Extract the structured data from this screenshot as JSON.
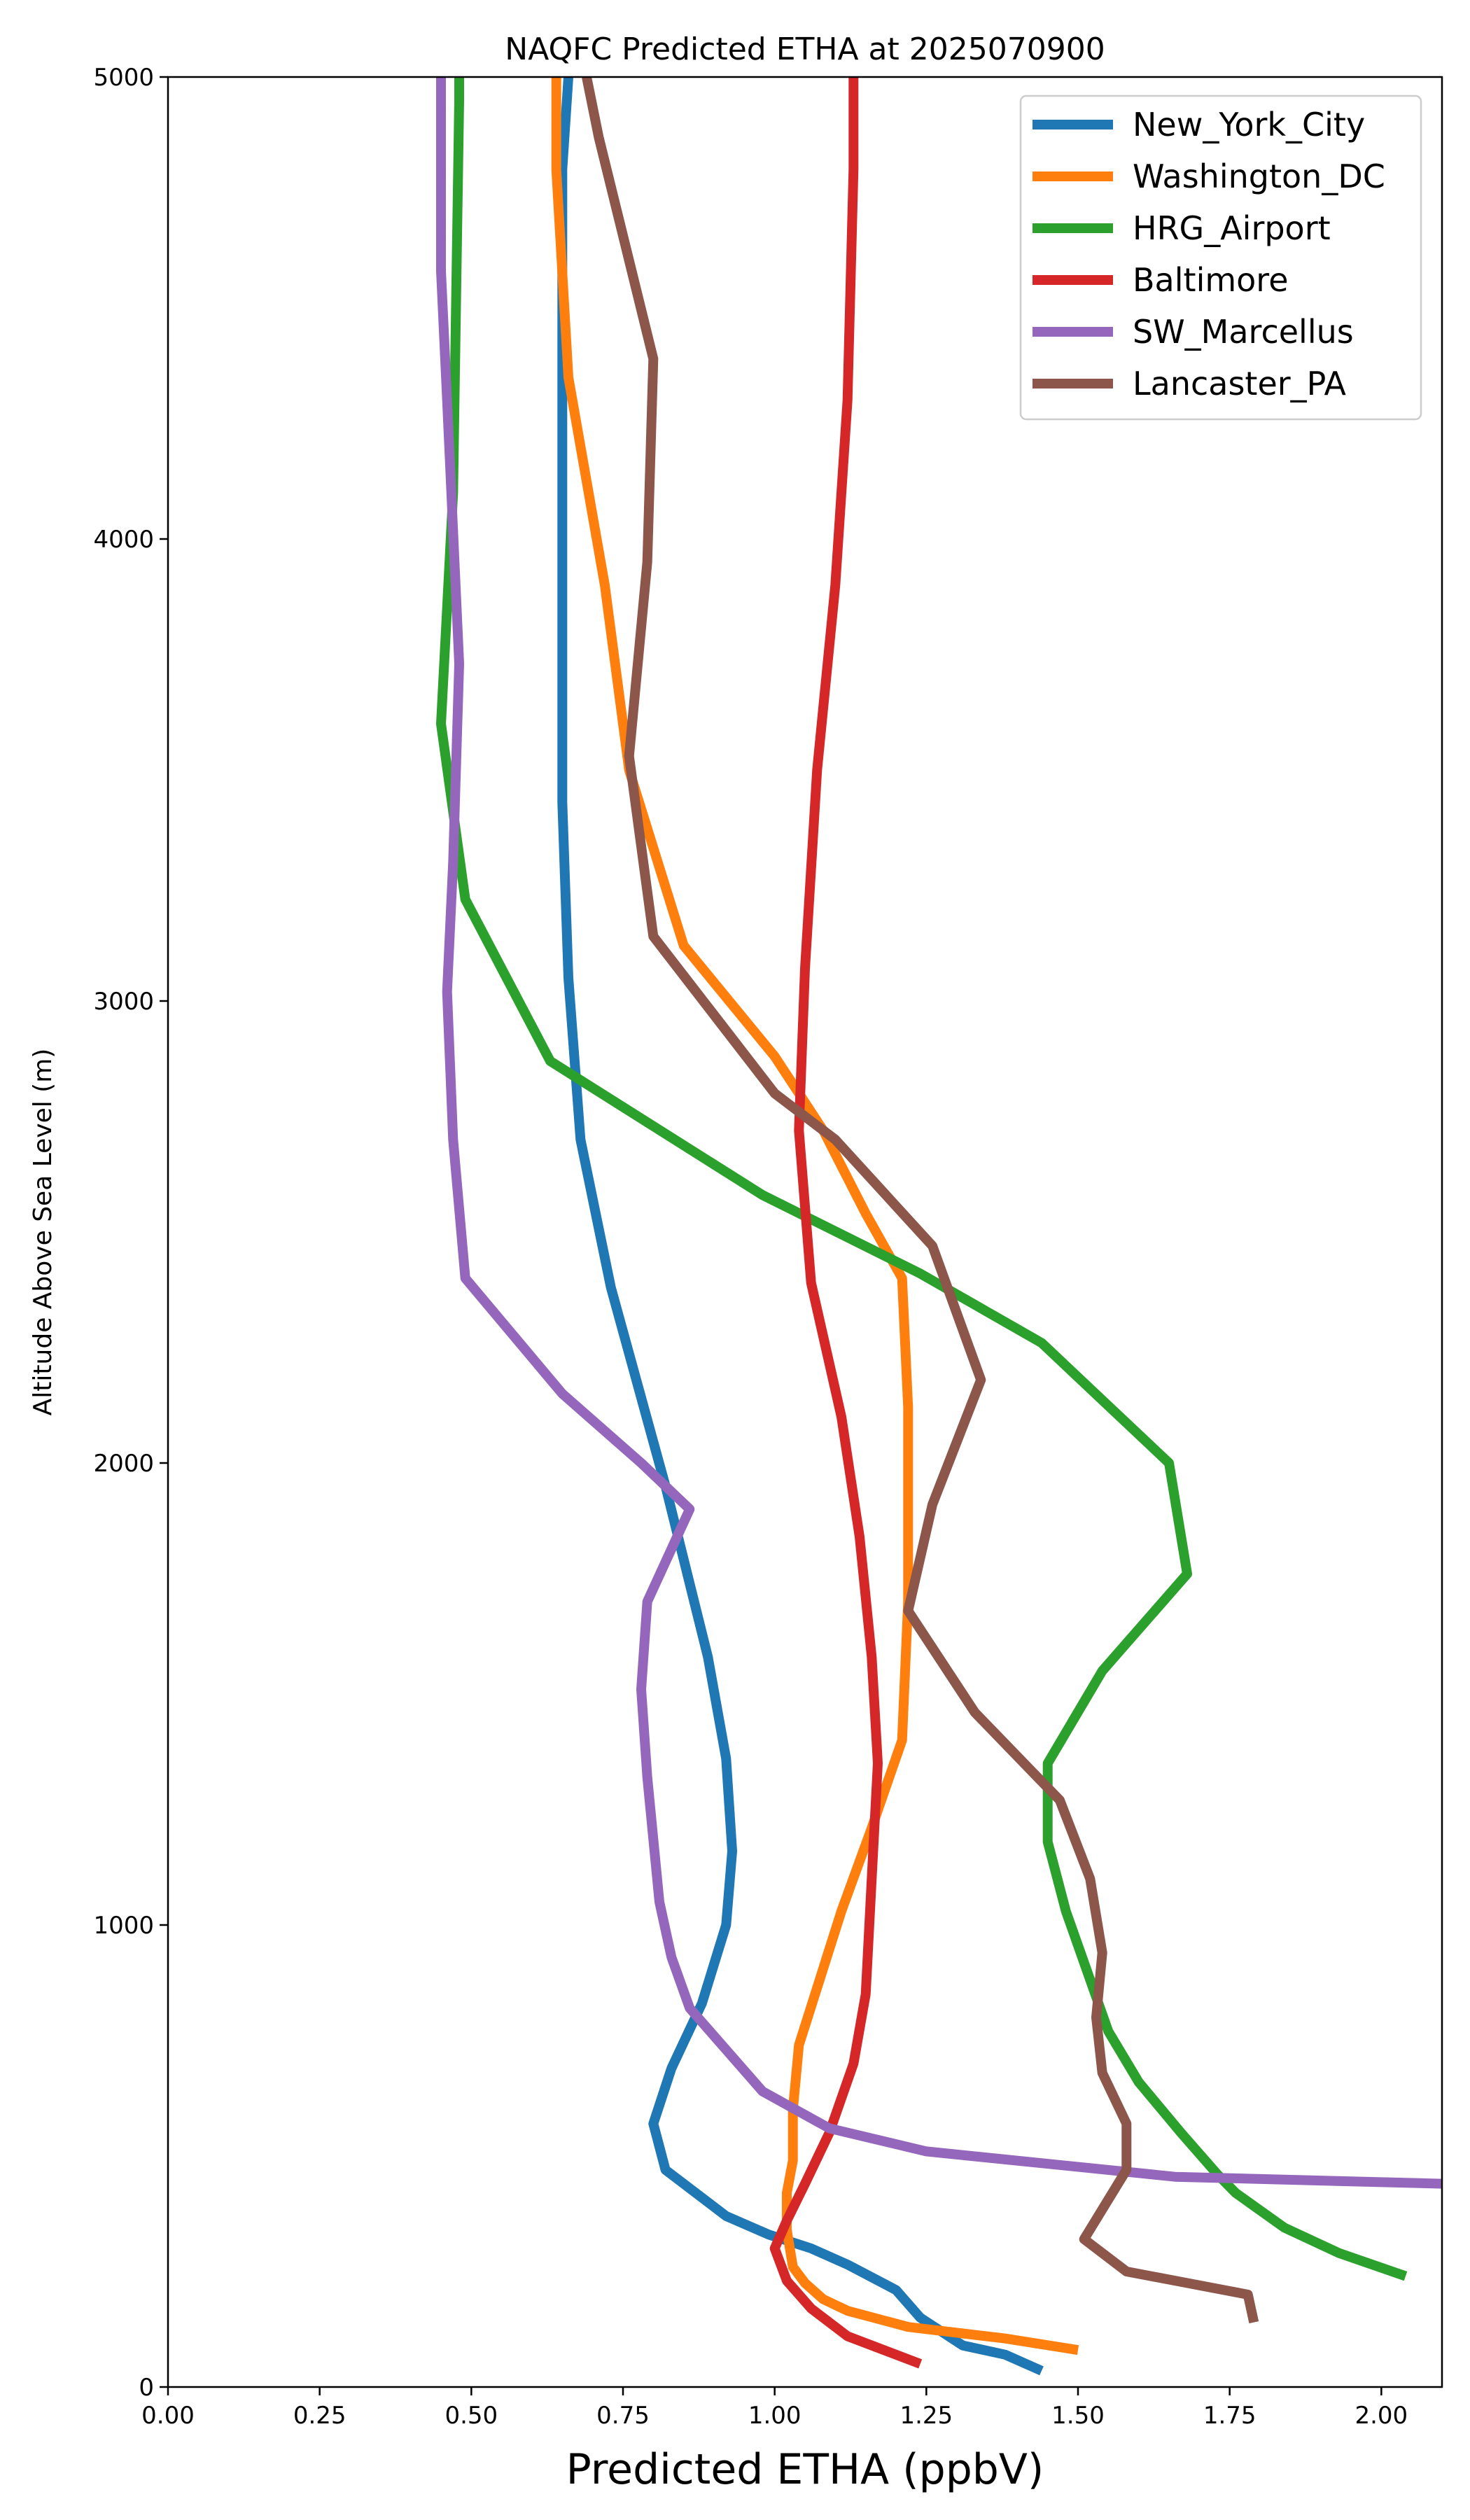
{
  "chart_data": {
    "type": "line",
    "title": "NAQFC Predicted ETHA at 2025070900",
    "xlabel": "Predicted ETHA (ppbV)",
    "ylabel": "Altitude Above Sea Level (m)",
    "xlim": [
      0,
      2.1
    ],
    "ylim": [
      0,
      5000
    ],
    "x_ticks": [
      "0.00",
      "0.25",
      "0.50",
      "0.75",
      "1.00",
      "1.25",
      "1.50",
      "1.75",
      "2.00"
    ],
    "x_tick_values": [
      0,
      0.25,
      0.5,
      0.75,
      1.0,
      1.25,
      1.5,
      1.75,
      2.0
    ],
    "y_ticks": [
      "0",
      "1000",
      "2000",
      "3000",
      "4000",
      "5000"
    ],
    "y_tick_values": [
      0,
      1000,
      2000,
      3000,
      4000,
      5000
    ],
    "grid": false,
    "legend_position": "top-right",
    "series": [
      {
        "name": "New_York_City",
        "color": "#1f77b4",
        "points": [
          [
            1.44,
            35
          ],
          [
            1.38,
            70
          ],
          [
            1.31,
            90
          ],
          [
            1.24,
            150
          ],
          [
            1.2,
            210
          ],
          [
            1.12,
            265
          ],
          [
            1.06,
            300
          ],
          [
            0.99,
            330
          ],
          [
            0.92,
            370
          ],
          [
            0.82,
            470
          ],
          [
            0.8,
            570
          ],
          [
            0.83,
            690
          ],
          [
            0.88,
            830
          ],
          [
            0.92,
            1000
          ],
          [
            0.93,
            1160
          ],
          [
            0.92,
            1360
          ],
          [
            0.89,
            1580
          ],
          [
            0.82,
            1950
          ],
          [
            0.73,
            2380
          ],
          [
            0.68,
            2700
          ],
          [
            0.66,
            3050
          ],
          [
            0.65,
            3430
          ],
          [
            0.65,
            4300
          ],
          [
            0.65,
            4800
          ],
          [
            0.66,
            5000
          ]
        ]
      },
      {
        "name": "Washington_DC",
        "color": "#ff7f0e",
        "points": [
          [
            1.5,
            80
          ],
          [
            1.38,
            105
          ],
          [
            1.22,
            130
          ],
          [
            1.12,
            165
          ],
          [
            1.08,
            190
          ],
          [
            1.05,
            225
          ],
          [
            1.03,
            260
          ],
          [
            1.02,
            340
          ],
          [
            1.02,
            420
          ],
          [
            1.03,
            490
          ],
          [
            1.03,
            600
          ],
          [
            1.04,
            740
          ],
          [
            1.11,
            1030
          ],
          [
            1.16,
            1210
          ],
          [
            1.21,
            1400
          ],
          [
            1.22,
            1700
          ],
          [
            1.22,
            2120
          ],
          [
            1.21,
            2400
          ],
          [
            1.15,
            2540
          ],
          [
            1.08,
            2720
          ],
          [
            1.0,
            2880
          ],
          [
            0.85,
            3120
          ],
          [
            0.76,
            3500
          ],
          [
            0.72,
            3900
          ],
          [
            0.66,
            4350
          ],
          [
            0.64,
            4800
          ],
          [
            0.64,
            5000
          ]
        ]
      },
      {
        "name": "HRG_Airport",
        "color": "#2ca02c",
        "points": [
          [
            2.04,
            240
          ],
          [
            1.93,
            290
          ],
          [
            1.84,
            345
          ],
          [
            1.76,
            420
          ],
          [
            1.73,
            460
          ],
          [
            1.67,
            550
          ],
          [
            1.6,
            660
          ],
          [
            1.55,
            770
          ],
          [
            1.48,
            1030
          ],
          [
            1.45,
            1180
          ],
          [
            1.45,
            1350
          ],
          [
            1.54,
            1550
          ],
          [
            1.68,
            1760
          ],
          [
            1.65,
            2000
          ],
          [
            1.44,
            2260
          ],
          [
            1.24,
            2410
          ],
          [
            0.98,
            2580
          ],
          [
            0.63,
            2870
          ],
          [
            0.49,
            3220
          ],
          [
            0.45,
            3600
          ],
          [
            0.47,
            4100
          ],
          [
            0.48,
            4950
          ],
          [
            0.48,
            5000
          ]
        ]
      },
      {
        "name": "Baltimore",
        "color": "#d62728",
        "points": [
          [
            1.24,
            50
          ],
          [
            1.12,
            110
          ],
          [
            1.06,
            170
          ],
          [
            1.02,
            230
          ],
          [
            1.0,
            300
          ],
          [
            1.02,
            360
          ],
          [
            1.05,
            440
          ],
          [
            1.09,
            550
          ],
          [
            1.13,
            700
          ],
          [
            1.15,
            850
          ],
          [
            1.16,
            1100
          ],
          [
            1.17,
            1350
          ],
          [
            1.16,
            1580
          ],
          [
            1.14,
            1840
          ],
          [
            1.11,
            2100
          ],
          [
            1.06,
            2390
          ],
          [
            1.04,
            2720
          ],
          [
            1.05,
            3070
          ],
          [
            1.07,
            3500
          ],
          [
            1.1,
            3900
          ],
          [
            1.12,
            4300
          ],
          [
            1.13,
            4800
          ],
          [
            1.13,
            5000
          ]
        ]
      },
      {
        "name": "SW_Marcellus",
        "color": "#9467bd",
        "points": [
          [
            2.1,
            440
          ],
          [
            1.66,
            455
          ],
          [
            1.25,
            510
          ],
          [
            1.09,
            560
          ],
          [
            0.98,
            640
          ],
          [
            0.92,
            730
          ],
          [
            0.86,
            820
          ],
          [
            0.83,
            930
          ],
          [
            0.81,
            1050
          ],
          [
            0.79,
            1320
          ],
          [
            0.78,
            1510
          ],
          [
            0.79,
            1700
          ],
          [
            0.86,
            1900
          ],
          [
            0.78,
            2000
          ],
          [
            0.65,
            2150
          ],
          [
            0.49,
            2400
          ],
          [
            0.47,
            2700
          ],
          [
            0.46,
            3020
          ],
          [
            0.47,
            3300
          ],
          [
            0.48,
            3730
          ],
          [
            0.46,
            4300
          ],
          [
            0.45,
            4580
          ],
          [
            0.45,
            5000
          ]
        ]
      },
      {
        "name": "Lancaster_PA",
        "color": "#8c564b",
        "points": [
          [
            1.79,
            140
          ],
          [
            1.78,
            200
          ],
          [
            1.58,
            250
          ],
          [
            1.51,
            320
          ],
          [
            1.58,
            470
          ],
          [
            1.58,
            570
          ],
          [
            1.54,
            680
          ],
          [
            1.53,
            800
          ],
          [
            1.54,
            940
          ],
          [
            1.52,
            1100
          ],
          [
            1.47,
            1270
          ],
          [
            1.33,
            1460
          ],
          [
            1.22,
            1680
          ],
          [
            1.26,
            1910
          ],
          [
            1.34,
            2180
          ],
          [
            1.26,
            2470
          ],
          [
            1.1,
            2700
          ],
          [
            1.0,
            2800
          ],
          [
            0.8,
            3140
          ],
          [
            0.76,
            3530
          ],
          [
            0.79,
            3950
          ],
          [
            0.8,
            4390
          ],
          [
            0.71,
            4870
          ],
          [
            0.69,
            5000
          ]
        ]
      }
    ]
  }
}
